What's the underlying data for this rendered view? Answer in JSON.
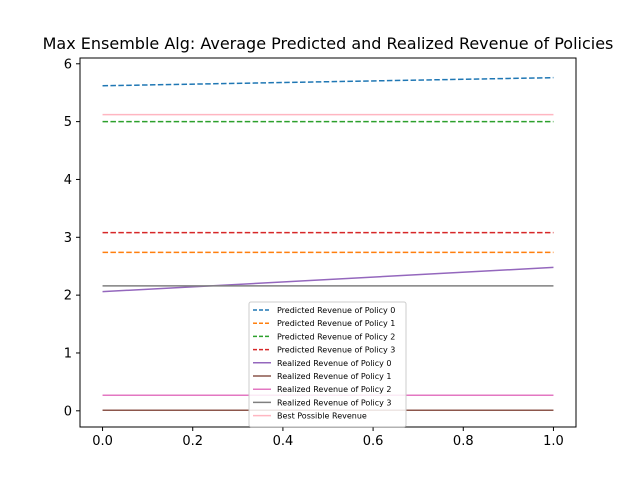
{
  "chart_data": {
    "type": "line",
    "title": "Max Ensemble Alg: Average Predicted and Realized Revenue of Policies",
    "xlabel": "",
    "ylabel": "",
    "xlim": [
      -0.05,
      1.05
    ],
    "ylim": [
      -0.28,
      6.1
    ],
    "x_ticks": [
      "0.0",
      "0.2",
      "0.4",
      "0.6",
      "0.8",
      "1.0"
    ],
    "y_ticks": [
      "0",
      "1",
      "2",
      "3",
      "4",
      "5",
      "6"
    ],
    "grid": false,
    "legend_position": "bottom-center",
    "x": [
      0.0,
      1.0
    ],
    "series": [
      {
        "name": "Predicted Revenue of Policy 0",
        "values": [
          5.62,
          5.76
        ],
        "color": "#1f77b4",
        "style": "dashed"
      },
      {
        "name": "Predicted Revenue of Policy 1",
        "values": [
          2.74,
          2.74
        ],
        "color": "#ff7f0e",
        "style": "dashed"
      },
      {
        "name": "Predicted Revenue of Policy 2",
        "values": [
          5.0,
          5.0
        ],
        "color": "#2ca02c",
        "style": "dashed"
      },
      {
        "name": "Predicted Revenue of Policy 3",
        "values": [
          3.08,
          3.08
        ],
        "color": "#d62728",
        "style": "dashed"
      },
      {
        "name": "Realized Revenue of Policy 0",
        "values": [
          2.06,
          2.48
        ],
        "color": "#9467bd",
        "style": "solid"
      },
      {
        "name": "Realized Revenue of Policy 1",
        "values": [
          0.01,
          0.01
        ],
        "color": "#8c564b",
        "style": "solid"
      },
      {
        "name": "Realized Revenue of Policy 2",
        "values": [
          0.27,
          0.27
        ],
        "color": "#e377c2",
        "style": "solid"
      },
      {
        "name": "Realized Revenue of Policy 3",
        "values": [
          2.16,
          2.16
        ],
        "color": "#7f7f7f",
        "style": "solid"
      },
      {
        "name": "Best Possible Revenue",
        "values": [
          5.12,
          5.12
        ],
        "color": "#ffb6c1",
        "style": "solid"
      }
    ]
  }
}
